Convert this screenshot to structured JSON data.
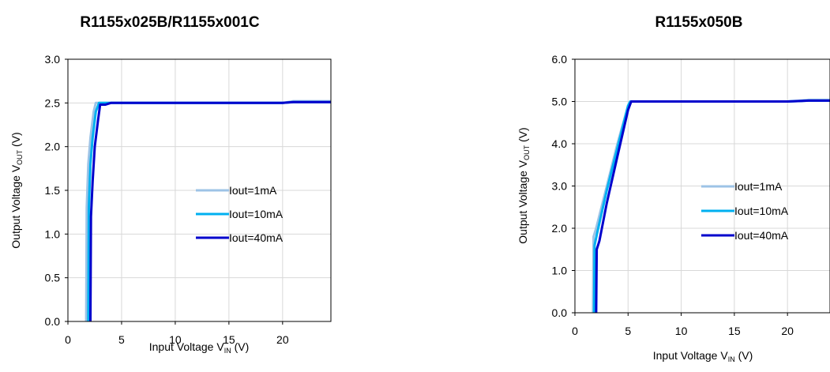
{
  "chart_data": [
    {
      "type": "line",
      "title": "R1155x025B/R1155x001C",
      "xlabel": {
        "main": "Input Voltage V",
        "sub": "IN",
        "unit": " (V)"
      },
      "ylabel": {
        "main": "Output Voltage V",
        "sub": "OUT",
        "unit": " (V)"
      },
      "xlim": [
        0,
        24.5
      ],
      "ylim": [
        0,
        3.0
      ],
      "xticks": [
        "0",
        "5",
        "10",
        "15",
        "20"
      ],
      "xtick_values": [
        0,
        5,
        10,
        15,
        20
      ],
      "yticks": [
        "0.0",
        "0.5",
        "1.0",
        "1.5",
        "2.0",
        "2.5",
        "3.0"
      ],
      "ytick_values": [
        0,
        0.5,
        1.0,
        1.5,
        2.0,
        2.5,
        3.0
      ],
      "grid": true,
      "legend": "center-right",
      "series": [
        {
          "name": "Iout=1mA",
          "color": "#9DC3E6",
          "x": [
            1.7,
            1.75,
            1.9,
            2.1,
            2.4,
            2.6,
            3.0,
            5.0,
            10,
            15,
            20,
            21,
            24.5
          ],
          "y": [
            0.0,
            1.3,
            1.8,
            2.1,
            2.4,
            2.5,
            2.5,
            2.5,
            2.5,
            2.5,
            2.5,
            2.52,
            2.52
          ]
        },
        {
          "name": "Iout=10mA",
          "color": "#00B0F0",
          "x": [
            1.9,
            1.95,
            2.1,
            2.3,
            2.6,
            2.9,
            3.5,
            5.0,
            10,
            15,
            20,
            21,
            24.5
          ],
          "y": [
            0.0,
            1.3,
            1.8,
            2.1,
            2.4,
            2.5,
            2.5,
            2.5,
            2.5,
            2.5,
            2.5,
            2.51,
            2.51
          ]
        },
        {
          "name": "Iout=40mA",
          "color": "#0000CC",
          "x": [
            2.1,
            2.15,
            2.3,
            2.5,
            2.8,
            3.0,
            3.5,
            4.0,
            5.0,
            10,
            15,
            20,
            21,
            24.5
          ],
          "y": [
            0.0,
            1.2,
            1.6,
            2.0,
            2.3,
            2.48,
            2.48,
            2.5,
            2.5,
            2.5,
            2.5,
            2.5,
            2.51,
            2.51
          ]
        }
      ]
    },
    {
      "type": "line",
      "title": "R1155x050B",
      "xlabel": {
        "main": "Input Voltage V",
        "sub": "IN",
        "unit": " (V)"
      },
      "ylabel": {
        "main": "Output Voltage V",
        "sub": "OUT",
        "unit": " (V)"
      },
      "xlim": [
        0,
        24
      ],
      "ylim": [
        0,
        6.0
      ],
      "xticks": [
        "0",
        "5",
        "10",
        "15",
        "20"
      ],
      "xtick_values": [
        0,
        5,
        10,
        15,
        20
      ],
      "yticks": [
        "0.0",
        "1.0",
        "2.0",
        "3.0",
        "4.0",
        "5.0",
        "6.0"
      ],
      "ytick_values": [
        0,
        1,
        2,
        3,
        4,
        5,
        6
      ],
      "grid": true,
      "legend": "center-right",
      "series": [
        {
          "name": "Iout=1mA",
          "color": "#9DC3E6",
          "x": [
            1.7,
            1.75,
            2.0,
            3.0,
            4.0,
            5.0,
            5.2,
            10,
            15,
            20,
            22,
            24
          ],
          "y": [
            0.0,
            1.8,
            2.0,
            3.0,
            4.0,
            4.9,
            5.0,
            5.0,
            5.0,
            5.0,
            5.04,
            5.04
          ]
        },
        {
          "name": "Iout=10mA",
          "color": "#00B0F0",
          "x": [
            1.8,
            1.85,
            2.1,
            3.0,
            4.0,
            5.0,
            5.2,
            10,
            15,
            20,
            22,
            24
          ],
          "y": [
            0.0,
            1.6,
            1.9,
            2.9,
            3.9,
            4.9,
            5.0,
            5.0,
            5.0,
            5.0,
            5.02,
            5.02
          ]
        },
        {
          "name": "Iout=40mA",
          "color": "#0000CC",
          "x": [
            2.0,
            2.05,
            2.3,
            3.0,
            4.0,
            5.0,
            5.3,
            10,
            15,
            20,
            22,
            24
          ],
          "y": [
            0.0,
            1.5,
            1.7,
            2.6,
            3.7,
            4.8,
            5.0,
            5.0,
            5.0,
            5.0,
            5.02,
            5.02
          ]
        }
      ]
    }
  ]
}
